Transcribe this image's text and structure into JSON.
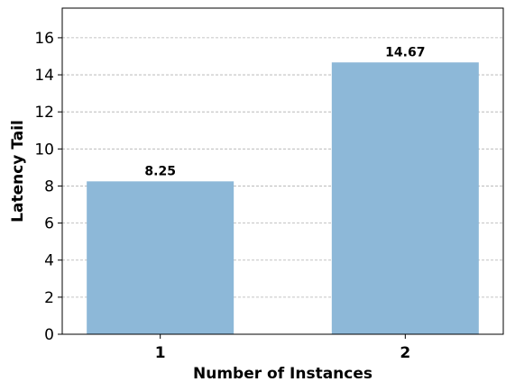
{
  "chart_data": {
    "type": "bar",
    "categories": [
      "1",
      "2"
    ],
    "values": [
      8.25,
      14.67
    ],
    "data_labels": [
      "8.25",
      "14.67"
    ],
    "xlabel": "Number of Instances",
    "ylabel": "Latency Tail",
    "ylim": [
      0,
      17.6
    ],
    "yticks": [
      0,
      2,
      4,
      6,
      8,
      10,
      12,
      14,
      16
    ],
    "ytick_labels": [
      "0",
      "2",
      "4",
      "6",
      "8",
      "10",
      "12",
      "14",
      "16"
    ],
    "grid": "y-dashed",
    "legend": "none",
    "bar_color": "#8db8d8"
  }
}
